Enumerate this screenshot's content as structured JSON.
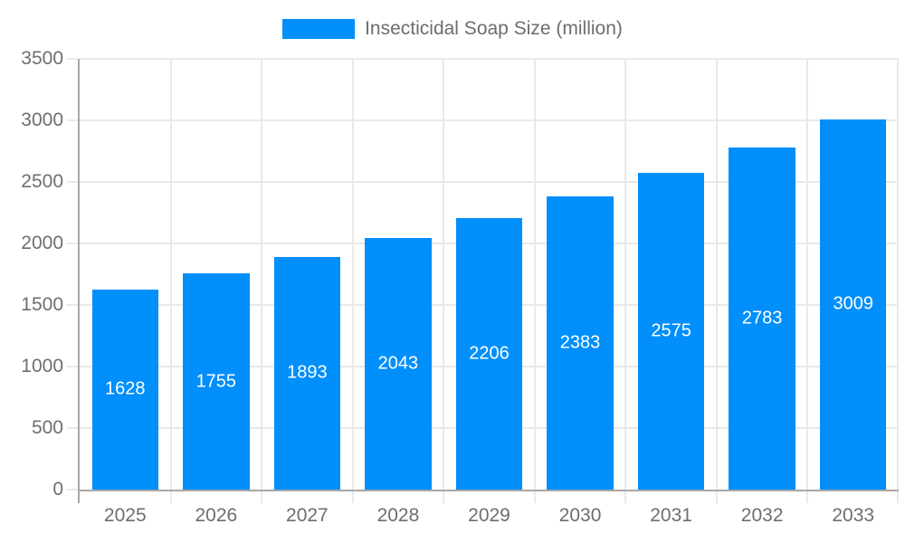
{
  "chart_data": {
    "type": "bar",
    "title": "Insecticidal Soap Size (million)",
    "legend": {
      "label": "Insecticidal Soap Size (million)",
      "position": "top"
    },
    "categories": [
      "2025",
      "2026",
      "2027",
      "2028",
      "2029",
      "2030",
      "2031",
      "2032",
      "2033"
    ],
    "series": [
      {
        "name": "Insecticidal Soap Size (million)",
        "values": [
          1628,
          1755,
          1893,
          2043,
          2206,
          2383,
          2575,
          2783,
          3009
        ]
      }
    ],
    "xlabel": "",
    "ylabel": "",
    "ylim": [
      0,
      3500
    ],
    "yticks": [
      0,
      500,
      1000,
      1500,
      2000,
      2500,
      3000,
      3500
    ],
    "grid": true,
    "bar_labels_visible": true,
    "colors": {
      "bar": "#008FFB",
      "bar_label_text": "#ffffff",
      "axis_text": "#6e6e6e",
      "legend_text": "#6d6d6d",
      "gridline": "#e9e9e9",
      "axis_line": "#a8a8a8",
      "background": "#ffffff"
    }
  }
}
